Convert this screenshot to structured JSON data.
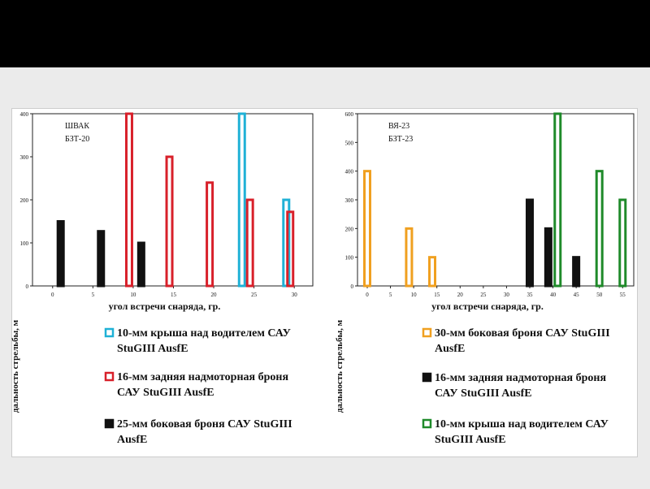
{
  "chart_data": [
    {
      "type": "bar",
      "annotation": [
        "ШВАК",
        "БЗТ-20"
      ],
      "xlabel": "угол встречи снаряда, гр.",
      "ylabel": "дальность стрельбы, м",
      "xlim": [
        -2.5,
        32.3
      ],
      "xticks": [
        0,
        5,
        10,
        15,
        20,
        25,
        30
      ],
      "ylim": [
        0,
        400
      ],
      "yticks": [
        0,
        100,
        200,
        300,
        400
      ],
      "series": [
        {
          "name": "10-мм крыша над водителем САУ StuGIII AusfE",
          "color": "#1fb1d6",
          "style": "outline",
          "x": [
            23.5,
            29
          ],
          "values": [
            400,
            200
          ]
        },
        {
          "name": "16-мм задняя надмоторная броня САУ StuGIII AusfE",
          "color": "#d8202a",
          "style": "outline",
          "x": [
            9.5,
            14.5,
            19.5,
            24.5,
            29.5
          ],
          "values": [
            400,
            300,
            240,
            200,
            172
          ]
        },
        {
          "name": "25-мм боковая броня САУ StuGIII AusfE",
          "color": "#111111",
          "style": "solid",
          "x": [
            1,
            6,
            11
          ],
          "values": [
            150,
            127,
            100
          ]
        }
      ]
    },
    {
      "type": "bar",
      "annotation": [
        "ВЯ-23",
        "БЗТ-23"
      ],
      "xlabel": "угол встречи снаряда, гр.",
      "ylabel": "дальность стрельбы, м",
      "xlim": [
        -2.1,
        57.4
      ],
      "xticks": [
        0,
        5,
        10,
        15,
        20,
        25,
        30,
        35,
        40,
        45,
        50,
        55
      ],
      "ylim": [
        0,
        600
      ],
      "yticks": [
        0,
        100,
        200,
        300,
        400,
        500,
        600
      ],
      "series": [
        {
          "name": "30-мм боковая броня САУ StuGIII AusfE",
          "color": "#f0a020",
          "style": "outline",
          "x": [
            0,
            9,
            14
          ],
          "values": [
            400,
            200,
            100
          ]
        },
        {
          "name": "16-мм задняя надмоторная броня САУ StuGIII AusfE",
          "color": "#111111",
          "style": "solid",
          "x": [
            35,
            39,
            45
          ],
          "values": [
            300,
            200,
            100
          ]
        },
        {
          "name": "10-мм крыша над водителем САУ StuGIII AusfE",
          "color": "#1f8a2a",
          "style": "outline",
          "x": [
            41,
            50,
            55
          ],
          "values": [
            600,
            400,
            300
          ]
        }
      ]
    }
  ]
}
